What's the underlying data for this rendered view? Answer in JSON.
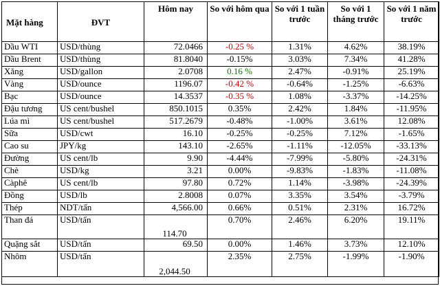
{
  "headers": [
    "Mặt hàng",
    "ĐVT",
    "Hôm nay",
    "So với hôm qua",
    "So với 1 tuần trước",
    "So với 1 tháng trước",
    "So với 1 năm trước"
  ],
  "rows": [
    {
      "name": "Dầu WTI",
      "unit": "USD/thùng",
      "today": "72.0466",
      "d1": "-0.25 %",
      "w1": "1.31%",
      "m1": "4.62%",
      "y1": "38.19%",
      "d1_color": "red"
    },
    {
      "name": "Dầu Brent",
      "unit": "USD/thùng",
      "today": "81.8040",
      "d1": "-0.15%",
      "w1": "3.03%",
      "m1": "7.34%",
      "y1": "41.28%",
      "d1_color": "black"
    },
    {
      "name": "Xăng",
      "unit": "USD/gallon",
      "today": "2.0708",
      "d1": "0.16 %",
      "w1": "2.47%",
      "m1": "-0.91%",
      "y1": "25.19%",
      "d1_color": "green"
    },
    {
      "name": "Vàng",
      "unit": "USD/ounce",
      "today": "1196.07",
      "d1": "-0.42 %",
      "w1": "-0.64%",
      "m1": "-1.25%",
      "y1": "-6.63%",
      "d1_color": "red"
    },
    {
      "name": "Bạc",
      "unit": "USD/ounce",
      "today": "14.3537",
      "d1": "-0.35 %",
      "w1": "1.08%",
      "m1": "-3.37%",
      "y1": "-14.25%",
      "d1_color": "red"
    },
    {
      "name": "Đậu tương",
      "unit": "US cent/bushel",
      "today": "850.1015",
      "d1": "0.35%",
      "w1": "2.42%",
      "m1": "1.84%",
      "y1": "-11.95%",
      "d1_color": "black"
    },
    {
      "name": "Lúa mì",
      "unit": "US cent/bushel",
      "today": "517.2679",
      "d1": "-0.48%",
      "w1": "-1.00%",
      "m1": "3.61%",
      "y1": "12.08%",
      "d1_color": "black"
    },
    {
      "name": "Sữa",
      "unit": "USD/cwt",
      "today": "16.10",
      "d1": "-0.25%",
      "w1": "-0.25%",
      "m1": "7.12%",
      "y1": "-1.65%",
      "d1_color": "black"
    },
    {
      "name": "Cao su",
      "unit": "JPY/kg",
      "today": "143.10",
      "d1": "-2.65%",
      "w1": "-1.11%",
      "m1": "-12.05%",
      "y1": "-33.13%",
      "d1_color": "black"
    },
    {
      "name": "Đường",
      "unit": "US cent/lb",
      "today": "9.90",
      "d1": "-4.44%",
      "w1": "-7.99%",
      "m1": "-5.80%",
      "y1": "-24.31%",
      "d1_color": "black"
    },
    {
      "name": "Chè",
      "unit": "USD/kg",
      "today": "3.21",
      "d1": "0.00%",
      "w1": "-9.83%",
      "m1": "-1.83%",
      "y1": "-11.08%",
      "d1_color": "black"
    },
    {
      "name": "Càphê",
      "unit": "US cent/lb",
      "today": "97.80",
      "d1": "0.72%",
      "w1": "1.14%",
      "m1": "-3.98%",
      "y1": "-24.39%",
      "d1_color": "black"
    },
    {
      "name": "Đồng",
      "unit": "USD/lb",
      "today": "2.8008",
      "d1": "0.07%",
      "w1": "3.35%",
      "m1": "3.54%",
      "y1": "-3.79%",
      "d1_color": "black"
    },
    {
      "name": "Thép",
      "unit": "NDT/tấn",
      "today": "4,566.00",
      "d1": "0.66%",
      "w1": "0.51%",
      "m1": "2.31%",
      "y1": "16.72%",
      "d1_color": "black"
    },
    {
      "name": "Than đá",
      "unit": "USD/tấn",
      "today": "114.70",
      "d1": "0.70%",
      "w1": "2.46%",
      "m1": "6.20%",
      "y1": "19.11%",
      "d1_color": "black"
    },
    {
      "name": "Quặng sắt",
      "unit": "USD/tấn",
      "today": "69.50",
      "d1": "0.00%",
      "w1": "1.46%",
      "m1": "3.73%",
      "y1": "12.10%",
      "d1_color": "black"
    },
    {
      "name": "Nhôm",
      "unit": "USD/tấn",
      "today": "2,044.50",
      "d1": "2.35%",
      "w1": "2.75%",
      "m1": "-1.99%",
      "y1": "-1.90%",
      "d1_color": "black"
    }
  ]
}
